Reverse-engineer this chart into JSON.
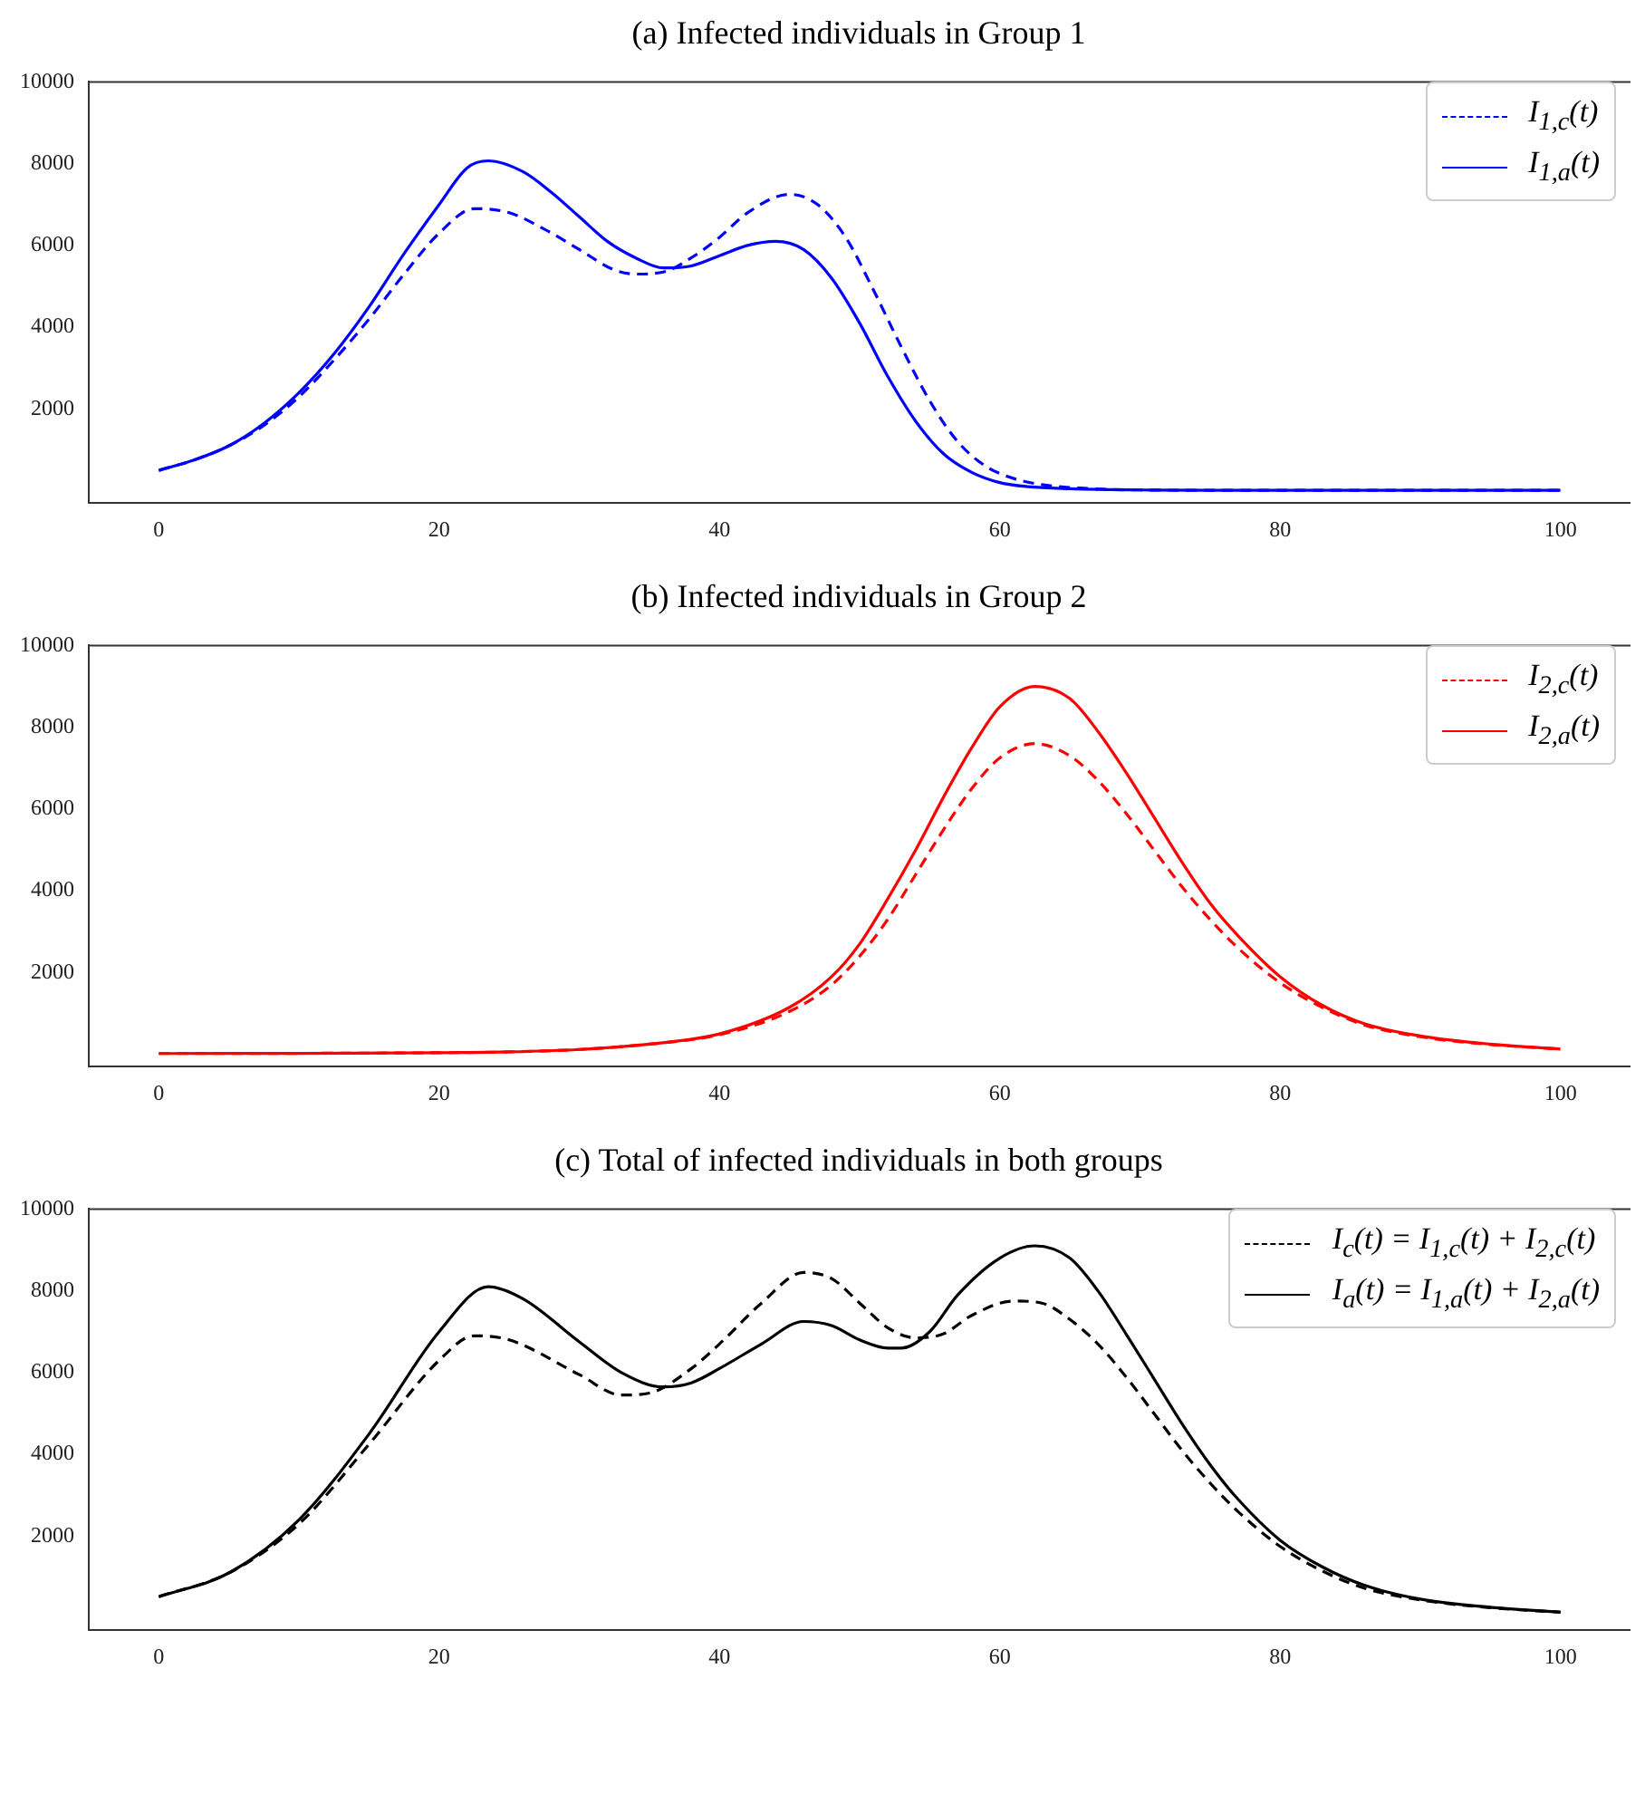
{
  "chart_data": [
    {
      "type": "line",
      "title": "(a) Infected individuals in Group 1",
      "xlim": [
        -5,
        105
      ],
      "xticks": [
        0,
        20,
        40,
        60,
        80,
        100
      ],
      "ylim": [
        -300,
        10000
      ],
      "yticks": [
        2000,
        4000,
        6000,
        8000,
        10000
      ],
      "legend": "top right",
      "series": [
        {
          "name": "I$_{1,c}$(t)",
          "color": "#0000ff",
          "line_style": "dashed",
          "x": [
            0,
            2.5,
            5,
            7.5,
            10,
            12.5,
            15,
            17.5,
            20,
            22.5,
            25,
            27.5,
            30,
            32.5,
            34,
            36,
            38,
            40,
            42,
            45,
            47,
            49,
            51,
            53,
            55,
            57,
            59,
            61,
            63,
            66,
            70,
            80,
            90,
            100
          ],
          "values": [
            500,
            750,
            1100,
            1600,
            2300,
            3200,
            4200,
            5300,
            6300,
            6900,
            6800,
            6400,
            5900,
            5400,
            5300,
            5350,
            5700,
            6200,
            6800,
            7250,
            7000,
            6200,
            4900,
            3500,
            2200,
            1200,
            600,
            300,
            150,
            60,
            20,
            10,
            10,
            10
          ]
        },
        {
          "name": "I$_{1,a}$(t)",
          "color": "#0000ff",
          "line_style": "solid",
          "x": [
            0,
            2.5,
            5,
            7.5,
            10,
            12.5,
            15,
            17.5,
            20,
            22,
            23.5,
            26,
            28,
            30,
            32,
            34,
            36,
            38,
            40,
            42,
            44,
            46,
            48,
            50,
            52,
            54,
            56,
            58,
            60,
            62,
            65,
            70,
            80,
            90,
            100
          ],
          "values": [
            500,
            750,
            1100,
            1650,
            2400,
            3350,
            4500,
            5800,
            7000,
            7900,
            8070,
            7800,
            7300,
            6700,
            6100,
            5700,
            5450,
            5500,
            5750,
            6000,
            6100,
            5900,
            5200,
            4100,
            2800,
            1700,
            900,
            450,
            200,
            100,
            50,
            20,
            10,
            10,
            10
          ]
        }
      ]
    },
    {
      "type": "line",
      "title": "(b) Infected individuals in Group 2",
      "xlim": [
        -5,
        105
      ],
      "xticks": [
        0,
        20,
        40,
        60,
        80,
        100
      ],
      "ylim": [
        -300,
        10000
      ],
      "yticks": [
        2000,
        4000,
        6000,
        8000,
        10000
      ],
      "legend": "top right",
      "series": [
        {
          "name": "I$_{2,c}$(t)",
          "color": "#ff0000",
          "line_style": "dashed",
          "x": [
            0,
            10,
            20,
            25,
            30,
            35,
            40,
            45,
            48,
            50,
            52,
            54,
            56,
            58,
            60,
            62.5,
            65,
            67,
            69,
            71,
            73,
            75,
            77,
            80,
            83,
            86,
            90,
            95,
            100
          ],
          "values": [
            20,
            25,
            40,
            60,
            120,
            250,
            480,
            1050,
            1700,
            2400,
            3300,
            4400,
            5500,
            6500,
            7250,
            7600,
            7300,
            6700,
            5900,
            5000,
            4100,
            3300,
            2600,
            1750,
            1150,
            720,
            430,
            240,
            130
          ]
        },
        {
          "name": "I$_{2,a}$(t)",
          "color": "#ff0000",
          "line_style": "solid",
          "x": [
            0,
            10,
            20,
            25,
            30,
            35,
            40,
            45,
            48,
            50,
            52,
            54,
            56,
            58,
            60,
            62.5,
            65,
            67,
            69,
            71,
            73,
            75,
            77,
            80,
            83,
            86,
            90,
            95,
            100
          ],
          "values": [
            20,
            25,
            40,
            60,
            120,
            250,
            500,
            1150,
            1900,
            2700,
            3800,
            5000,
            6300,
            7500,
            8500,
            9000,
            8700,
            7900,
            6900,
            5800,
            4700,
            3700,
            2900,
            1900,
            1200,
            750,
            450,
            250,
            130
          ]
        }
      ]
    },
    {
      "type": "line",
      "title": "(c) Total of infected individuals in both groups",
      "xlim": [
        -5,
        105
      ],
      "xticks": [
        0,
        20,
        40,
        60,
        80,
        100
      ],
      "ylim": [
        -300,
        10000
      ],
      "yticks": [
        2000,
        4000,
        6000,
        8000,
        10000
      ],
      "legend": "top right",
      "series": [
        {
          "name": "I$_{c}$(t) = I$_{1,c}$(t) + I$_{2,c}$(t)",
          "color": "#000000",
          "line_style": "dashed",
          "x": [
            0,
            5,
            10,
            15,
            20,
            22.5,
            25,
            30,
            33,
            35,
            38,
            40,
            43,
            46,
            48,
            50,
            52,
            54,
            56,
            58,
            61,
            63,
            65,
            67,
            69,
            71,
            73,
            75,
            77,
            80,
            83,
            86,
            90,
            95,
            100
          ],
          "values": [
            520,
            1100,
            2300,
            4250,
            6300,
            6900,
            6800,
            5950,
            5450,
            5500,
            6100,
            6700,
            7700,
            8450,
            8300,
            7700,
            7100,
            6850,
            6950,
            7400,
            7750,
            7700,
            7300,
            6700,
            5900,
            5000,
            4100,
            3300,
            2600,
            1750,
            1150,
            730,
            440,
            250,
            140
          ]
        },
        {
          "name": "I$_{a}$(t) = I$_{1,a}$(t) + I$_{2,a}$(t)",
          "color": "#000000",
          "line_style": "solid",
          "x": [
            0,
            5,
            10,
            15,
            20,
            23.5,
            26,
            30,
            33,
            36,
            38,
            40,
            43,
            46,
            48,
            50,
            52,
            53,
            55,
            57,
            60,
            62.5,
            65,
            67,
            69,
            71,
            73,
            75,
            77,
            80,
            83,
            86,
            90,
            95,
            100
          ],
          "values": [
            520,
            1100,
            2400,
            4500,
            7000,
            8100,
            7800,
            6750,
            6000,
            5650,
            5750,
            6100,
            6700,
            7250,
            7150,
            6800,
            6600,
            6600,
            7000,
            7900,
            8800,
            9100,
            8800,
            8000,
            6950,
            5850,
            4750,
            3750,
            2900,
            1900,
            1250,
            800,
            460,
            260,
            140
          ]
        }
      ]
    }
  ]
}
